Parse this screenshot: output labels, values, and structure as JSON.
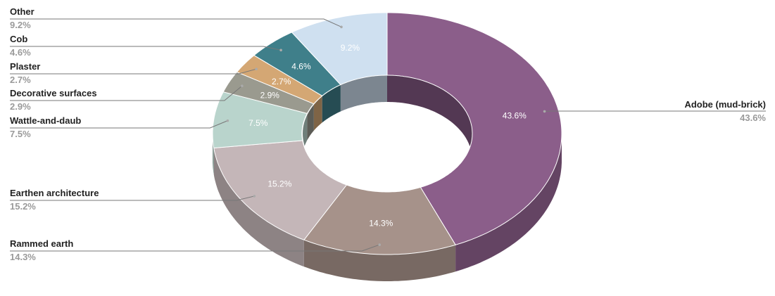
{
  "chart_data": {
    "type": "pie",
    "categories": [
      "Adobe (mud-brick)",
      "Rammed earth",
      "Earthen architecture",
      "Wattle-and-daub",
      "Decorative surfaces",
      "Plaster",
      "Cob",
      "Other"
    ],
    "values": [
      43.6,
      14.3,
      15.2,
      7.5,
      2.9,
      2.7,
      4.6,
      9.2
    ],
    "value_labels": [
      "43.6%",
      "14.3%",
      "15.2%",
      "7.5%",
      "2.9%",
      "2.7%",
      "4.6%",
      "9.2%"
    ],
    "colors": [
      "#8b5e8a",
      "#a6928a",
      "#c4b6b8",
      "#b9d4cc",
      "#9a9a8f",
      "#d4a774",
      "#3f7f8a",
      "#cfe0f0"
    ]
  }
}
